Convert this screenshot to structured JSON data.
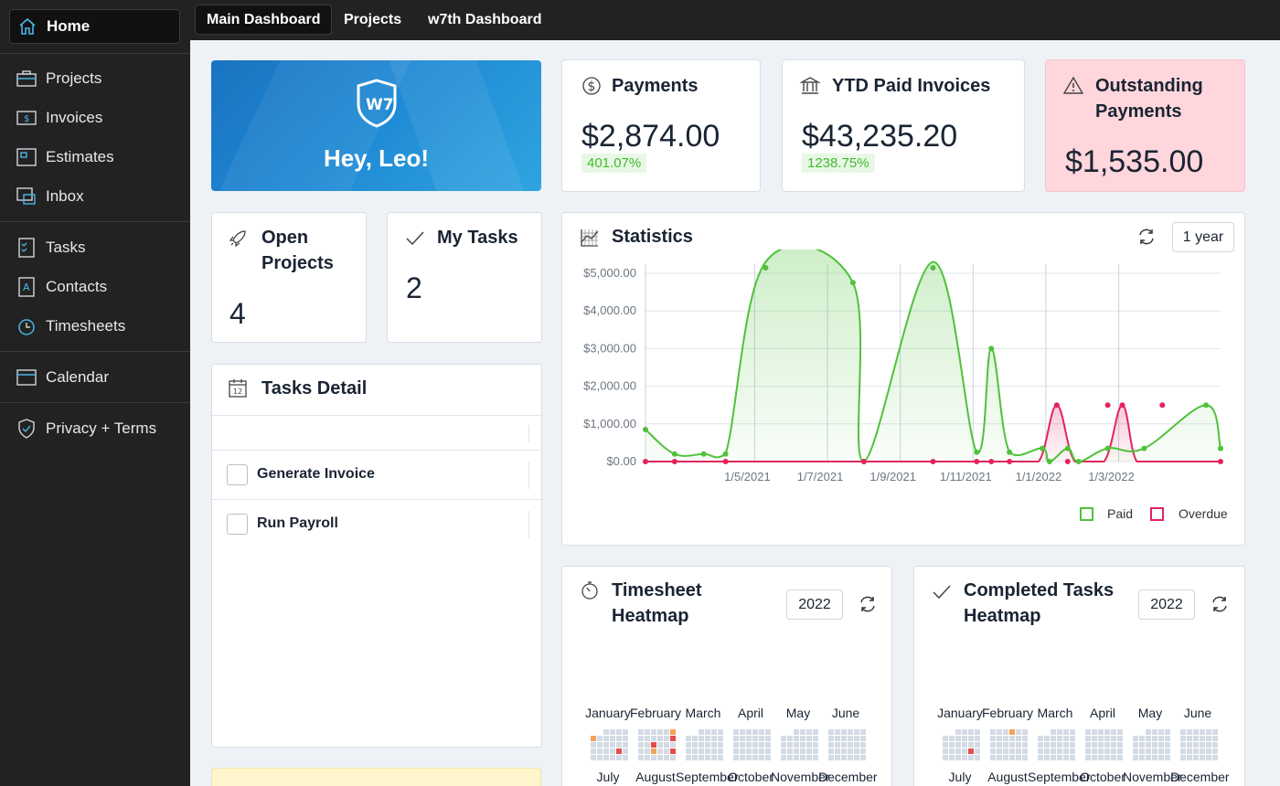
{
  "sidebar": {
    "items": [
      {
        "label": "Home",
        "icon": "home-icon"
      },
      {
        "label": "Projects",
        "icon": "briefcase-icon"
      },
      {
        "label": "Invoices",
        "icon": "invoice-icon"
      },
      {
        "label": "Estimates",
        "icon": "estimate-icon"
      },
      {
        "label": "Inbox",
        "icon": "inbox-icon"
      },
      {
        "label": "Tasks",
        "icon": "checklist-icon"
      },
      {
        "label": "Contacts",
        "icon": "contacts-icon"
      },
      {
        "label": "Timesheets",
        "icon": "clock-icon"
      },
      {
        "label": "Calendar",
        "icon": "calendar-icon"
      },
      {
        "label": "Privacy + Terms",
        "icon": "shield-icon"
      }
    ]
  },
  "topbar": {
    "tabs": [
      "Main Dashboard",
      "Projects",
      "w7th Dashboard"
    ]
  },
  "hero": {
    "greeting": "Hey, Leo!"
  },
  "payments": {
    "title": "Payments",
    "value": "$2,874.00",
    "change": "401.07%"
  },
  "ytd": {
    "title": "YTD Paid Invoices",
    "value": "$43,235.20",
    "change": "1238.75%"
  },
  "outstanding": {
    "title_line1": "Outstanding",
    "title_line2": "Payments",
    "value": "$1,535.00"
  },
  "open_projects": {
    "title_line1": "Open",
    "title_line2": "Projects",
    "value": "4"
  },
  "my_tasks": {
    "title": "My Tasks",
    "value": "2"
  },
  "tasks_detail": {
    "title": "Tasks Detail",
    "tasks": [
      "Generate Invoice",
      "Run Payroll"
    ]
  },
  "statistics": {
    "title": "Statistics",
    "range": "1 year"
  },
  "chart_data": {
    "type": "line",
    "title": "Statistics",
    "ylim": [
      0,
      5000
    ],
    "ytick_labels": [
      "$5,000.00",
      "$4,000.00",
      "$3,000.00",
      "$2,000.00",
      "$1,000.00",
      "$0.00"
    ],
    "ytick_values": [
      5000,
      4000,
      3000,
      2000,
      1000,
      0
    ],
    "xtick_labels": [
      "1/5/2021",
      "1/7/2021",
      "1/9/2021",
      "1/11/2021",
      "1/1/2022",
      "1/3/2022"
    ],
    "xtick_positions": [
      3,
      5,
      7,
      9,
      11,
      13
    ],
    "grid": true,
    "legend_position": "bottom-right",
    "series": [
      {
        "name": "Paid",
        "color": "#4fc23a",
        "x": [
          0,
          0.8,
          1.6,
          2.2,
          3.3,
          5.7,
          6,
          7.9,
          9.1,
          9.5,
          10,
          10.9,
          11.1,
          11.6,
          11.9,
          12.7,
          13.7,
          15.4,
          15.8
        ],
        "values": [
          850,
          200,
          200,
          200,
          5300,
          4750,
          0,
          5300,
          250,
          3000,
          250,
          350,
          0,
          350,
          0,
          350,
          350,
          1500,
          350
        ]
      },
      {
        "name": "Overdue",
        "color": "#e3245c",
        "x": [
          0,
          0.8,
          2.2,
          6,
          7.9,
          9.1,
          9.5,
          10,
          11.6,
          12.7,
          14.2,
          15.8
        ],
        "values": [
          0,
          0,
          0,
          0,
          0,
          0,
          0,
          0,
          0,
          1500,
          1500,
          0
        ],
        "peaks_x": [
          11.3,
          13.1
        ]
      }
    ]
  },
  "legend": {
    "paid": "Paid",
    "overdue": "Overdue"
  },
  "timesheet": {
    "title_line1": "Timesheet",
    "title_line2": "Heatmap",
    "year": "2022"
  },
  "completed": {
    "title_line1": "Completed Tasks",
    "title_line2": "Heatmap",
    "year": "2022"
  },
  "months_top": [
    "January",
    "February",
    "March",
    "April",
    "May",
    "June"
  ],
  "months_bottom": [
    "July",
    "August",
    "September",
    "October",
    "November",
    "December"
  ],
  "colors": {
    "accent_green": "#4fc23a",
    "accent_red": "#e3245c",
    "outstanding_bg": "#ffd6db"
  }
}
